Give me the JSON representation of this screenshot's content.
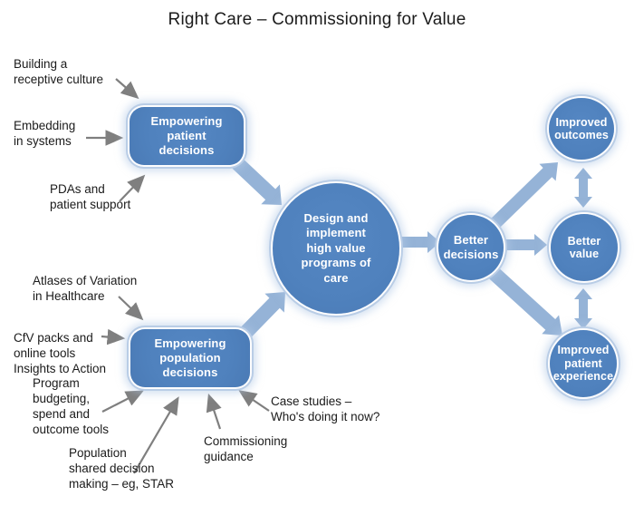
{
  "title": "Right Care – Commissioning for Value",
  "colors": {
    "node_fill": "#4f81bd",
    "node_ring": "#b9cde6",
    "block_arrow": "#95b3d7",
    "connector_gray": "#7f7f7f",
    "label_text": "#1b1b1b",
    "node_text": "#ffffff"
  },
  "nodes": {
    "empowering_patient": {
      "label": "Empowering\npatient\ndecisions"
    },
    "empowering_population": {
      "label": "Empowering\npopulation\ndecisions"
    },
    "design_implement": {
      "label": "Design and\nimplement\nhigh value\nprograms of\ncare"
    },
    "better_decisions": {
      "label": "Better\ndecisions"
    },
    "improved_outcomes": {
      "label": "Improved\noutcomes"
    },
    "better_value": {
      "label": "Better\nvalue"
    },
    "improved_patient_experience": {
      "label": "Improved\npatient\nexperience"
    }
  },
  "annotations": {
    "building": {
      "label": "Building a\nreceptive culture"
    },
    "embedding": {
      "label": "Embedding\nin systems"
    },
    "pdas": {
      "label": "PDAs and\npatient support"
    },
    "atlases": {
      "label": "Atlases of Variation\nin Healthcare"
    },
    "cfv": {
      "label": "CfV packs and\nonline tools\nInsights to Action"
    },
    "program": {
      "label": "Program\nbudgeting,\nspend and\noutcome tools"
    },
    "population_sdm": {
      "label": "Population\nshared decision\nmaking – eg, STAR"
    },
    "commissioning": {
      "label": "Commissioning\nguidance"
    },
    "case_studies": {
      "label": "Case studies –\nWho's doing it now?"
    }
  }
}
